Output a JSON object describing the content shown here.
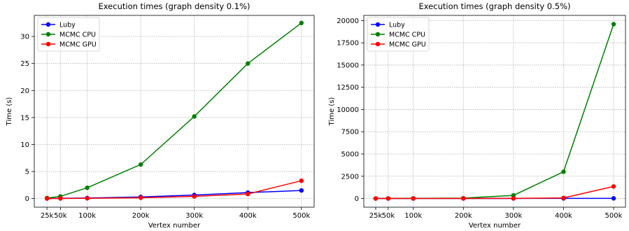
{
  "chart_data": [
    {
      "type": "line",
      "title": "Execution times (graph density 0.1%)",
      "xlabel": "Vertex number",
      "ylabel": "Time (s)",
      "x": [
        25000,
        50000,
        100000,
        200000,
        300000,
        400000,
        500000
      ],
      "xticks": [
        {
          "value": 25000,
          "label": "25k"
        },
        {
          "value": 50000,
          "label": "50k"
        },
        {
          "value": 100000,
          "label": "100k"
        },
        {
          "value": 200000,
          "label": "200k"
        },
        {
          "value": 300000,
          "label": "300k"
        },
        {
          "value": 400000,
          "label": "400k"
        },
        {
          "value": 500000,
          "label": "500k"
        }
      ],
      "yticks": [
        {
          "value": 0,
          "label": "0"
        },
        {
          "value": 5,
          "label": "5"
        },
        {
          "value": 10,
          "label": "10"
        },
        {
          "value": 15,
          "label": "15"
        },
        {
          "value": 20,
          "label": "20"
        },
        {
          "value": 25,
          "label": "25"
        },
        {
          "value": 30,
          "label": "30"
        }
      ],
      "xlim": [
        1250,
        523750
      ],
      "ylim": [
        -1.6,
        33.9
      ],
      "grid": true,
      "legend_position": "upper left",
      "series": [
        {
          "name": "Luby",
          "color": "#0000ff",
          "values": [
            0.02,
            0.05,
            0.1,
            0.3,
            0.65,
            1.1,
            1.5
          ]
        },
        {
          "name": "MCMC CPU",
          "color": "#008000",
          "values": [
            0.1,
            0.4,
            2.0,
            6.3,
            15.2,
            25.0,
            32.5
          ]
        },
        {
          "name": "MCMC GPU",
          "color": "#ff0000",
          "values": [
            0.01,
            0.02,
            0.05,
            0.15,
            0.4,
            0.85,
            3.3
          ]
        }
      ]
    },
    {
      "type": "line",
      "title": "Execution times (graph density 0.5%)",
      "xlabel": "Vertex number",
      "ylabel": "Time (s)",
      "x": [
        25000,
        50000,
        100000,
        200000,
        300000,
        400000,
        500000
      ],
      "xticks": [
        {
          "value": 25000,
          "label": "25k"
        },
        {
          "value": 50000,
          "label": "50k"
        },
        {
          "value": 100000,
          "label": "100k"
        },
        {
          "value": 200000,
          "label": "200k"
        },
        {
          "value": 300000,
          "label": "300k"
        },
        {
          "value": 400000,
          "label": "400k"
        },
        {
          "value": 500000,
          "label": "500k"
        }
      ],
      "yticks": [
        {
          "value": 0,
          "label": "0"
        },
        {
          "value": 2500,
          "label": "2500"
        },
        {
          "value": 5000,
          "label": "5000"
        },
        {
          "value": 7500,
          "label": "7500"
        },
        {
          "value": 10000,
          "label": "10000"
        },
        {
          "value": 12500,
          "label": "12500"
        },
        {
          "value": 15000,
          "label": "15000"
        },
        {
          "value": 17500,
          "label": "17500"
        },
        {
          "value": 20000,
          "label": "20000"
        }
      ],
      "xlim": [
        1250,
        523750
      ],
      "ylim": [
        -980,
        20580
      ],
      "grid": true,
      "legend_position": "upper left",
      "series": [
        {
          "name": "Luby",
          "color": "#0000ff",
          "values": [
            1,
            2,
            3,
            5,
            8,
            12,
            15
          ]
        },
        {
          "name": "MCMC CPU",
          "color": "#008000",
          "values": [
            2,
            5,
            15,
            40,
            350,
            3000,
            19600
          ]
        },
        {
          "name": "MCMC GPU",
          "color": "#ff0000",
          "values": [
            0,
            1,
            2,
            4,
            10,
            60,
            1350
          ]
        }
      ]
    }
  ]
}
